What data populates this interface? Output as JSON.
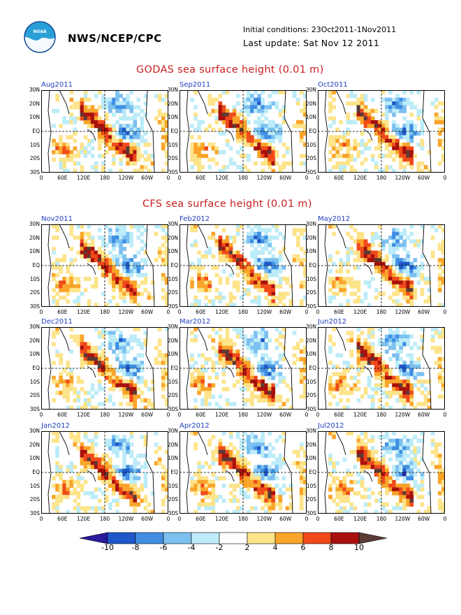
{
  "header": {
    "agency": "NWS/NCEP/CPC",
    "initial_conditions": "Initial conditions: 23Oct2011-1Nov2011",
    "last_update": "Last update: Sat Nov 12 2011"
  },
  "sections": [
    {
      "title": "GODAS sea surface height (0.01 m)"
    },
    {
      "title": "CFS sea surface height (0.01 m)"
    }
  ],
  "panels": [
    {
      "label": "Aug2011",
      "row": 0,
      "col": 0,
      "seed": 3
    },
    {
      "label": "Sep2011",
      "row": 0,
      "col": 1,
      "seed": 7
    },
    {
      "label": "Oct2011",
      "row": 0,
      "col": 2,
      "seed": 11
    },
    {
      "label": "Nov2011",
      "row": 1,
      "col": 0,
      "seed": 13
    },
    {
      "label": "Feb2012",
      "row": 1,
      "col": 1,
      "seed": 17
    },
    {
      "label": "May2012",
      "row": 1,
      "col": 2,
      "seed": 19
    },
    {
      "label": "Dec2011",
      "row": 2,
      "col": 0,
      "seed": 23
    },
    {
      "label": "Mar2012",
      "row": 2,
      "col": 1,
      "seed": 29
    },
    {
      "label": "Jun2012",
      "row": 2,
      "col": 2,
      "seed": 31
    },
    {
      "label": "Jan2012",
      "row": 3,
      "col": 0,
      "seed": 37
    },
    {
      "label": "Apr2012",
      "row": 3,
      "col": 1,
      "seed": 41
    },
    {
      "label": "Jul2012",
      "row": 3,
      "col": 2,
      "seed": 43
    }
  ],
  "lat_labels": [
    "30N",
    "20N",
    "10N",
    "EQ",
    "10S",
    "20S",
    "30S"
  ],
  "lon_labels": [
    "0",
    "60E",
    "120E",
    "180",
    "120W",
    "60W",
    "0"
  ],
  "colorbar": {
    "labels": [
      "-10",
      "-8",
      "-6",
      "-4",
      "-2",
      "2",
      "4",
      "6",
      "8",
      "10"
    ],
    "colors": [
      "#2b1a9e",
      "#1f57c8",
      "#3f8ee3",
      "#7cc0f0",
      "#bcecf8",
      "#ffffff",
      "#fde48a",
      "#f9a42a",
      "#f04a1b",
      "#a8100d",
      "#5a3a35"
    ]
  }
}
